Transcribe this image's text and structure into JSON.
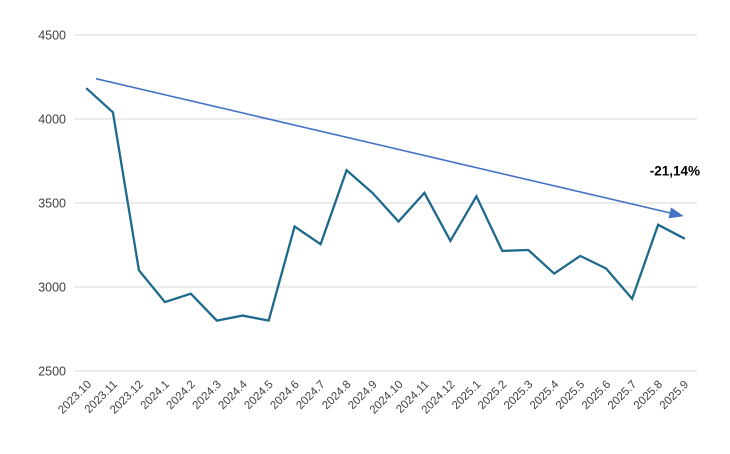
{
  "chart_data": {
    "type": "line",
    "title": "",
    "categories": [
      "2023.10",
      "2023.11",
      "2023.12",
      "2024.1",
      "2024.2",
      "2024.3",
      "2024.4",
      "2024.5",
      "2024.6",
      "2024.7",
      "2024.8",
      "2024.9",
      "2024.10",
      "2024.11",
      "2024.12",
      "2025.1",
      "2025.2",
      "2025.3",
      "2025.4",
      "2025.5",
      "2025.6",
      "2025.7",
      "2025.8",
      "2025.9"
    ],
    "series": [
      {
        "name": "",
        "color": "#1E698C",
        "values": [
          4180,
          4040,
          3100,
          2910,
          2960,
          2800,
          2830,
          2800,
          3360,
          3255,
          3695,
          3560,
          3390,
          3560,
          3275,
          3540,
          3215,
          3220,
          3080,
          3185,
          3110,
          2930,
          3370,
          3290
        ]
      }
    ],
    "xlabel": "",
    "ylabel": "",
    "ylim": [
      2500,
      4500
    ],
    "y_ticks": [
      2500,
      3000,
      3500,
      4000,
      4500
    ],
    "x_tick_rotation_deg": -45,
    "grid": "horizontal",
    "legend": "none",
    "gridline_color": "#D9D9D9",
    "axis_label_color": "#3F3F3F",
    "background_color": "#FFFFFF",
    "trendline": {
      "color": "#4472C4",
      "start": {
        "index": 0.35,
        "value": 4240
      },
      "end": {
        "index": 22.9,
        "value": 3425
      },
      "arrowhead": true
    },
    "annotation": {
      "text": "-21,14%",
      "index": 22.65,
      "value": 3665,
      "color": "#000000",
      "bold": true
    }
  }
}
